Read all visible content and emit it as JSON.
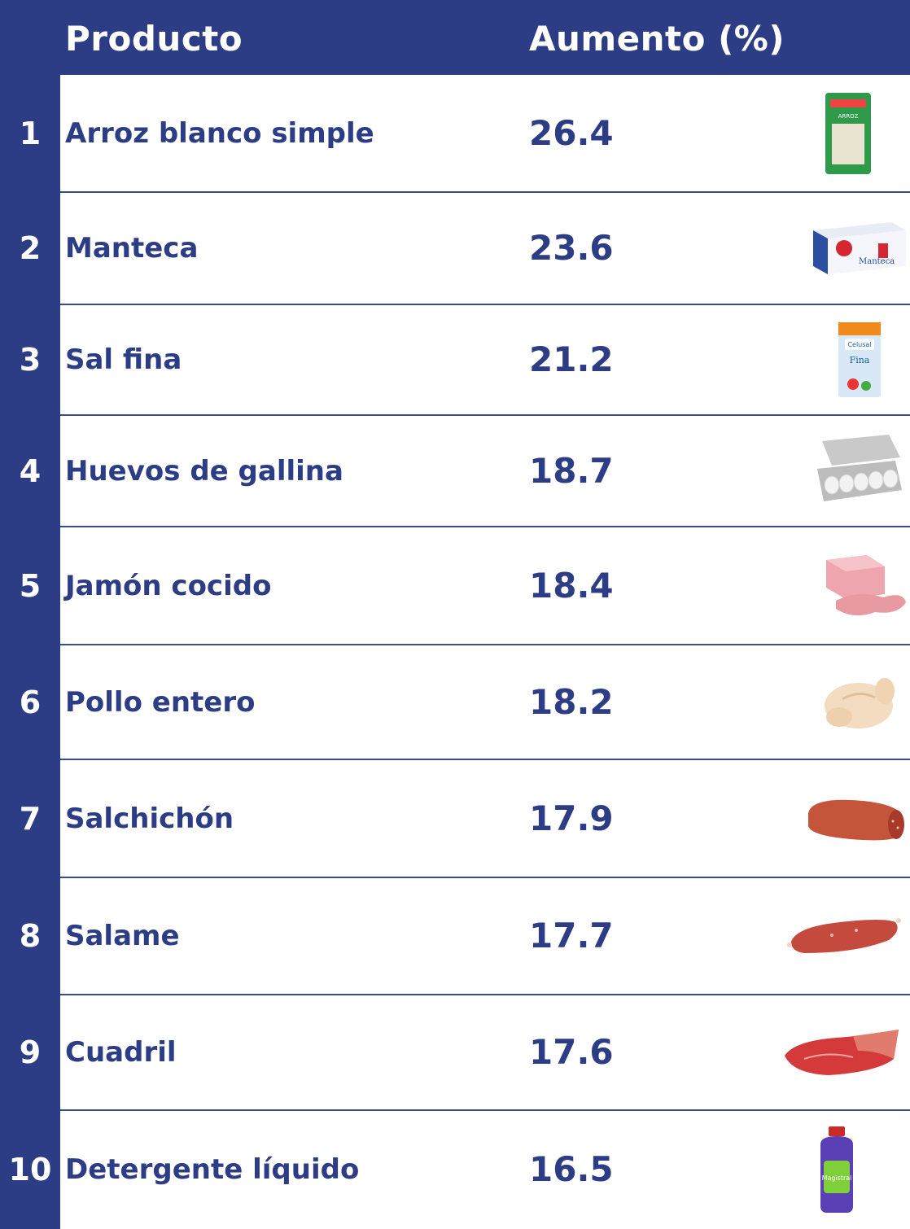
{
  "chart_data": {
    "type": "table",
    "columns": [
      "Producto",
      "Aumento (%)"
    ],
    "rows": [
      {
        "rank": "1",
        "producto": "Arroz blanco simple",
        "aumento": "26.4",
        "icon": "rice-bag-icon"
      },
      {
        "rank": "2",
        "producto": "Manteca",
        "aumento": "23.6",
        "icon": "butter-box-icon"
      },
      {
        "rank": "3",
        "producto": "Sal fina",
        "aumento": "21.2",
        "icon": "salt-package-icon"
      },
      {
        "rank": "4",
        "producto": "Huevos de gallina",
        "aumento": "18.7",
        "icon": "egg-carton-icon"
      },
      {
        "rank": "5",
        "producto": "Jamón cocido",
        "aumento": "18.4",
        "icon": "ham-icon"
      },
      {
        "rank": "6",
        "producto": "Pollo entero",
        "aumento": "18.2",
        "icon": "whole-chicken-icon"
      },
      {
        "rank": "7",
        "producto": "Salchichón",
        "aumento": "17.9",
        "icon": "salchichon-icon"
      },
      {
        "rank": "8",
        "producto": "Salame",
        "aumento": "17.7",
        "icon": "salami-icon"
      },
      {
        "rank": "9",
        "producto": "Cuadril",
        "aumento": "17.6",
        "icon": "beef-cut-icon"
      },
      {
        "rank": "10",
        "producto": "Detergente líquido",
        "aumento": "16.5",
        "icon": "detergent-bottle-icon"
      }
    ]
  },
  "header": {
    "producto": "Producto",
    "aumento": "Aumento (%)"
  },
  "colors": {
    "brand": "#2c3d86",
    "background": "#ffffff"
  }
}
